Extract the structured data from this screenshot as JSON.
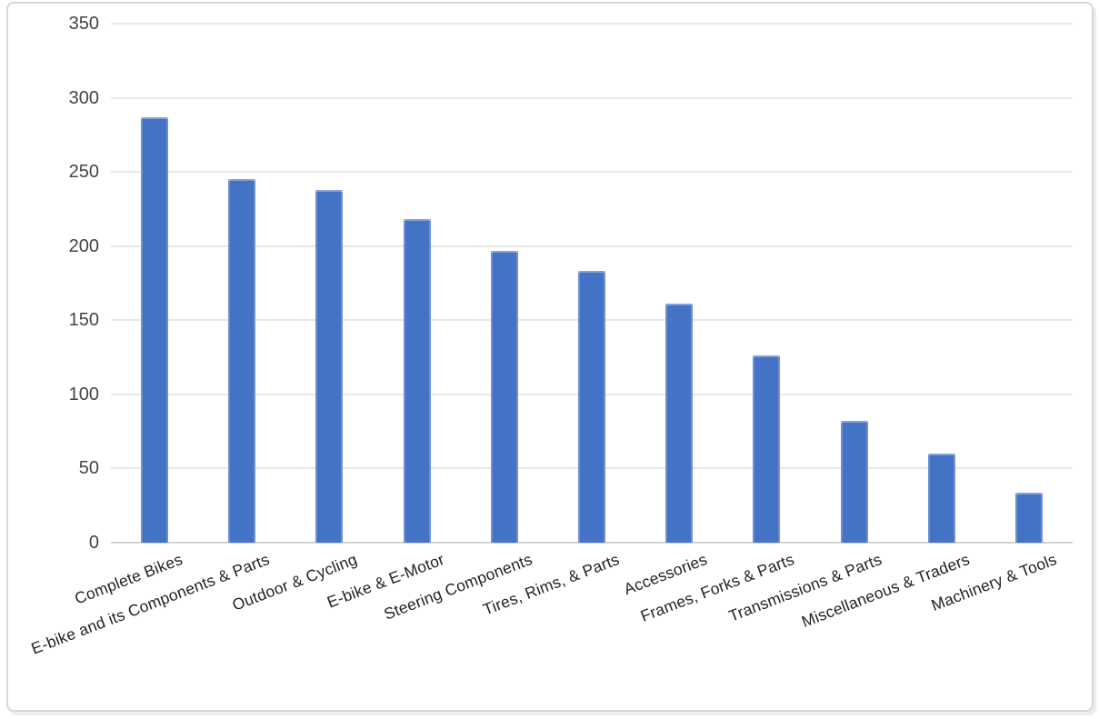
{
  "chart_data": {
    "type": "bar",
    "title": "",
    "xlabel": "",
    "ylabel": "",
    "categories": [
      "Complete Bikes",
      "E-bike and its Components & Parts",
      "Outdoor & Cycling",
      "E-bike & E-Motor",
      "Steering Components",
      "Tires, Rims, & Parts",
      "Accessories",
      "Frames, Forks & Parts",
      "Transmissions & Parts",
      "Miscellaneous & Traders",
      "Machinery & Tools"
    ],
    "values": [
      287,
      245,
      238,
      218,
      197,
      183,
      161,
      126,
      82,
      60,
      34
    ],
    "ylim": [
      0,
      350
    ],
    "ytick_step": 50,
    "yticks": [
      350,
      300,
      250,
      200,
      150,
      100,
      50,
      0
    ],
    "grid": true,
    "legend_position": "none",
    "bar_color": "#4472c4",
    "gridline_color": "#e8e8e8",
    "axis_line_color": "#d4d4d4",
    "tick_label_color": "#444444",
    "category_label_color": "#222222",
    "background_color": "#ffffff",
    "frame_border_color": "#d8d8d8"
  }
}
